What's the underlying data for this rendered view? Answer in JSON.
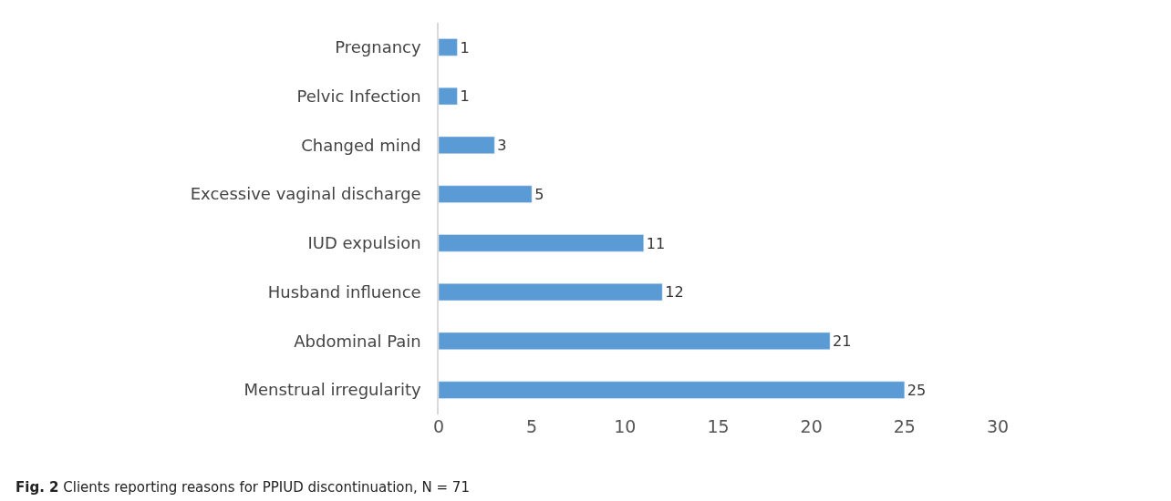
{
  "chart_data": {
    "type": "bar",
    "orientation": "horizontal",
    "categories": [
      "Pregnancy",
      "Pelvic Infection",
      "Changed mind",
      "Excessive vaginal discharge",
      "IUD expulsion",
      "Husband influence",
      "Abdominal Pain",
      "Menstrual irregularity"
    ],
    "values": [
      1,
      1,
      3,
      5,
      11,
      12,
      21,
      25
    ],
    "color": "#5b9bd5",
    "xlim": [
      0,
      30
    ],
    "xticks": [
      0,
      5,
      10,
      15,
      20,
      25,
      30
    ],
    "data_labels": true,
    "legend": false,
    "annotations": [
      "Fig. 2 Clients reporting reasons for PPIUD discontinuation, N = 71"
    ]
  }
}
